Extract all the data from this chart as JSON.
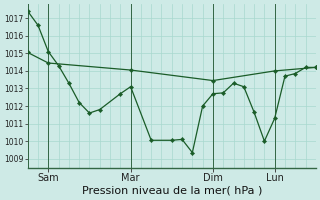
{
  "bg_color": "#ceeae6",
  "grid_color": "#a8d8ce",
  "line_color": "#1a5c28",
  "marker_color": "#1a5c28",
  "xlabel": "Pression niveau de la mer( hPa )",
  "ylim": [
    1008.5,
    1017.8
  ],
  "yticks": [
    1009,
    1010,
    1011,
    1012,
    1013,
    1014,
    1015,
    1016,
    1017
  ],
  "xtick_labels": [
    "Sam",
    "Mar",
    "Dim",
    "Lun"
  ],
  "xtick_positions": [
    12,
    60,
    108,
    144
  ],
  "xlim": [
    0,
    168
  ],
  "series1_x": [
    0,
    6,
    12,
    18,
    24,
    30,
    36,
    42,
    54,
    60,
    72,
    84,
    90,
    96,
    102,
    108,
    114,
    120,
    126,
    132,
    138,
    144,
    150,
    156,
    162,
    168
  ],
  "series1_y": [
    1017.4,
    1016.6,
    1015.1,
    1014.3,
    1013.3,
    1012.2,
    1011.6,
    1011.8,
    1012.7,
    1013.1,
    1010.05,
    1010.05,
    1010.1,
    1009.35,
    1012.0,
    1012.7,
    1012.75,
    1013.3,
    1013.1,
    1011.65,
    1010.0,
    1011.3,
    1013.7,
    1013.85,
    1014.2,
    1014.2
  ],
  "series2_x": [
    0,
    12,
    60,
    108,
    144,
    168
  ],
  "series2_y": [
    1015.05,
    1014.45,
    1014.05,
    1013.45,
    1014.0,
    1014.2
  ],
  "figsize": [
    3.2,
    2.0
  ],
  "dpi": 100,
  "xlabel_fontsize": 8,
  "ytick_fontsize": 5.5,
  "xtick_fontsize": 7
}
